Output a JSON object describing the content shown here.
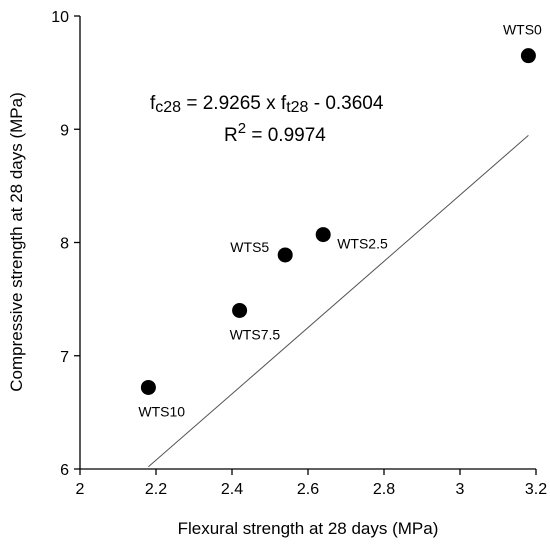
{
  "chart_data": {
    "type": "scatter",
    "title": "",
    "xlabel": "Flexural strength at 28 days (MPa)",
    "ylabel": "Compressive strength at 28 days (MPa)",
    "xlim": [
      2,
      3.2
    ],
    "ylim": [
      6,
      10
    ],
    "x_ticks": [
      2,
      2.2,
      2.4,
      2.6,
      2.8,
      3,
      3.2
    ],
    "y_ticks": [
      6,
      7,
      8,
      9,
      10
    ],
    "x_tick_labels": [
      "2",
      "2.2",
      "2.4",
      "2.6",
      "2.8",
      "3",
      "3.2"
    ],
    "y_tick_labels": [
      "6",
      "7",
      "8",
      "9",
      "10"
    ],
    "grid": false,
    "legend": "none",
    "points": [
      {
        "label": "WTS0",
        "x": 3.18,
        "y": 9.65
      },
      {
        "label": "WTS2.5",
        "x": 2.64,
        "y": 8.07
      },
      {
        "label": "WTS5",
        "x": 2.54,
        "y": 7.89
      },
      {
        "label": "WTS7.5",
        "x": 2.42,
        "y": 7.4
      },
      {
        "label": "WTS10",
        "x": 2.18,
        "y": 6.72
      }
    ],
    "fit_line": {
      "slope": 2.9265,
      "intercept": -0.3604,
      "x_range": [
        2.18,
        3.18
      ]
    },
    "annotation": {
      "equation_lhs_base": "f",
      "equation_lhs_sub": "c28",
      "equation_middle": " = 2.9265 x f",
      "equation_rhs_sub": "t28",
      "equation_tail": " - 0.3604",
      "r2_base": "R",
      "r2_sup": "2",
      "r2_tail": " = 0.9974"
    },
    "colors": {
      "marker": "#000000",
      "line": "#555555",
      "axis": "#000000"
    }
  }
}
